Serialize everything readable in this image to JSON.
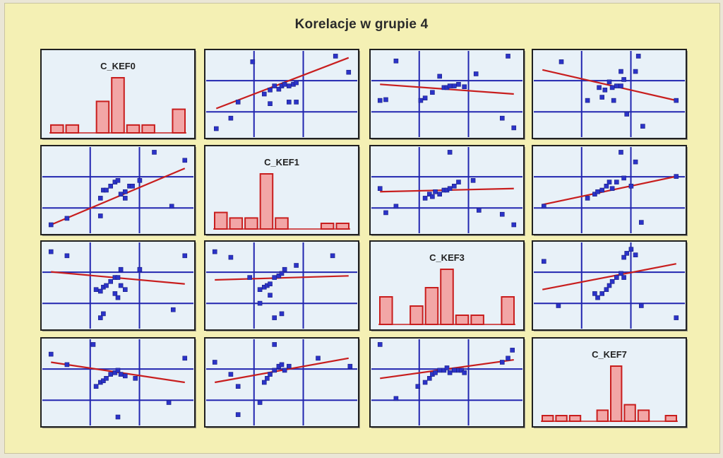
{
  "chart_data": {
    "type": "scatter",
    "title": "Korelacje w grupie 4",
    "variables": [
      "C_KEF0",
      "C_KEF1",
      "C_KEF3",
      "C_KEF7"
    ],
    "colors": {
      "points": "#2b33c8",
      "line": "#c81e1e",
      "bars_fill": "#f2a6a6",
      "bars_stroke": "#c81e1e",
      "grid": "#2226b0",
      "panel_bg": "#e8f1f8"
    },
    "histograms": [
      {
        "var": "C_KEF0",
        "counts": [
          1,
          1,
          0,
          4,
          7,
          1,
          1,
          0,
          3
        ]
      },
      {
        "var": "C_KEF1",
        "counts": [
          3,
          2,
          2,
          10,
          2,
          0,
          0,
          1,
          1
        ]
      },
      {
        "var": "C_KEF3",
        "counts": [
          3,
          0,
          2,
          4,
          6,
          1,
          1,
          0,
          3
        ]
      },
      {
        "var": "C_KEF7",
        "counts": [
          1,
          1,
          1,
          0,
          2,
          10,
          3,
          2,
          0,
          1
        ]
      }
    ],
    "scatter": [
      {
        "row": 0,
        "col": 1,
        "points": [
          [
            0.05,
            0.07
          ],
          [
            0.15,
            0.2
          ],
          [
            0.2,
            0.4
          ],
          [
            0.3,
            0.9
          ],
          [
            0.38,
            0.5
          ],
          [
            0.42,
            0.55
          ],
          [
            0.45,
            0.6
          ],
          [
            0.48,
            0.56
          ],
          [
            0.5,
            0.6
          ],
          [
            0.52,
            0.62
          ],
          [
            0.55,
            0.6
          ],
          [
            0.58,
            0.62
          ],
          [
            0.6,
            0.64
          ],
          [
            0.42,
            0.38
          ],
          [
            0.55,
            0.4
          ],
          [
            0.6,
            0.4
          ],
          [
            0.87,
            0.97
          ],
          [
            0.96,
            0.77
          ]
        ],
        "line": [
          [
            0.05,
            0.32
          ],
          [
            0.96,
            0.95
          ]
        ]
      },
      {
        "row": 0,
        "col": 2,
        "points": [
          [
            0.04,
            0.42
          ],
          [
            0.08,
            0.43
          ],
          [
            0.15,
            0.91
          ],
          [
            0.32,
            0.42
          ],
          [
            0.35,
            0.45
          ],
          [
            0.4,
            0.52
          ],
          [
            0.45,
            0.72
          ],
          [
            0.48,
            0.58
          ],
          [
            0.5,
            0.58
          ],
          [
            0.52,
            0.6
          ],
          [
            0.55,
            0.6
          ],
          [
            0.58,
            0.62
          ],
          [
            0.62,
            0.59
          ],
          [
            0.7,
            0.75
          ],
          [
            0.88,
            0.2
          ],
          [
            0.92,
            0.97
          ],
          [
            0.96,
            0.08
          ]
        ],
        "line": [
          [
            0.04,
            0.62
          ],
          [
            0.96,
            0.5
          ]
        ]
      },
      {
        "row": 0,
        "col": 3,
        "points": [
          [
            0.17,
            0.9
          ],
          [
            0.35,
            0.42
          ],
          [
            0.43,
            0.58
          ],
          [
            0.45,
            0.46
          ],
          [
            0.47,
            0.55
          ],
          [
            0.5,
            0.65
          ],
          [
            0.52,
            0.58
          ],
          [
            0.53,
            0.42
          ],
          [
            0.55,
            0.6
          ],
          [
            0.58,
            0.6
          ],
          [
            0.6,
            0.68
          ],
          [
            0.58,
            0.78
          ],
          [
            0.62,
            0.25
          ],
          [
            0.68,
            0.78
          ],
          [
            0.7,
            0.97
          ],
          [
            0.73,
            0.1
          ],
          [
            0.96,
            0.42
          ]
        ],
        "line": [
          [
            0.04,
            0.8
          ],
          [
            0.96,
            0.42
          ]
        ]
      },
      {
        "row": 1,
        "col": 0,
        "points": [
          [
            0.04,
            0.07
          ],
          [
            0.15,
            0.15
          ],
          [
            0.38,
            0.4
          ],
          [
            0.4,
            0.5
          ],
          [
            0.42,
            0.5
          ],
          [
            0.45,
            0.55
          ],
          [
            0.48,
            0.6
          ],
          [
            0.5,
            0.62
          ],
          [
            0.52,
            0.45
          ],
          [
            0.55,
            0.48
          ],
          [
            0.58,
            0.55
          ],
          [
            0.6,
            0.55
          ],
          [
            0.38,
            0.18
          ],
          [
            0.55,
            0.4
          ],
          [
            0.65,
            0.62
          ],
          [
            0.75,
            0.97
          ],
          [
            0.87,
            0.3
          ],
          [
            0.96,
            0.87
          ]
        ],
        "line": [
          [
            0.04,
            0.07
          ],
          [
            0.96,
            0.77
          ]
        ]
      },
      {
        "row": 1,
        "col": 2,
        "points": [
          [
            0.04,
            0.52
          ],
          [
            0.08,
            0.22
          ],
          [
            0.15,
            0.3
          ],
          [
            0.35,
            0.4
          ],
          [
            0.38,
            0.45
          ],
          [
            0.4,
            0.42
          ],
          [
            0.42,
            0.48
          ],
          [
            0.45,
            0.45
          ],
          [
            0.48,
            0.5
          ],
          [
            0.5,
            0.5
          ],
          [
            0.52,
            0.52
          ],
          [
            0.55,
            0.55
          ],
          [
            0.58,
            0.6
          ],
          [
            0.52,
            0.97
          ],
          [
            0.68,
            0.62
          ],
          [
            0.72,
            0.25
          ],
          [
            0.88,
            0.2
          ],
          [
            0.96,
            0.07
          ]
        ],
        "line": [
          [
            0.04,
            0.48
          ],
          [
            0.96,
            0.52
          ]
        ]
      },
      {
        "row": 1,
        "col": 3,
        "points": [
          [
            0.05,
            0.3
          ],
          [
            0.35,
            0.4
          ],
          [
            0.4,
            0.45
          ],
          [
            0.42,
            0.48
          ],
          [
            0.45,
            0.5
          ],
          [
            0.48,
            0.55
          ],
          [
            0.5,
            0.6
          ],
          [
            0.52,
            0.52
          ],
          [
            0.55,
            0.6
          ],
          [
            0.6,
            0.65
          ],
          [
            0.65,
            0.55
          ],
          [
            0.58,
            0.97
          ],
          [
            0.68,
            0.85
          ],
          [
            0.72,
            0.1
          ],
          [
            0.96,
            0.67
          ]
        ],
        "line": [
          [
            0.04,
            0.32
          ],
          [
            0.96,
            0.67
          ]
        ]
      },
      {
        "row": 2,
        "col": 0,
        "points": [
          [
            0.04,
            0.92
          ],
          [
            0.15,
            0.87
          ],
          [
            0.35,
            0.45
          ],
          [
            0.38,
            0.43
          ],
          [
            0.4,
            0.48
          ],
          [
            0.42,
            0.5
          ],
          [
            0.45,
            0.55
          ],
          [
            0.48,
            0.6
          ],
          [
            0.5,
            0.6
          ],
          [
            0.52,
            0.5
          ],
          [
            0.55,
            0.45
          ],
          [
            0.48,
            0.4
          ],
          [
            0.5,
            0.35
          ],
          [
            0.52,
            0.7
          ],
          [
            0.38,
            0.1
          ],
          [
            0.4,
            0.15
          ],
          [
            0.65,
            0.7
          ],
          [
            0.88,
            0.2
          ],
          [
            0.96,
            0.87
          ]
        ],
        "line": [
          [
            0.04,
            0.67
          ],
          [
            0.96,
            0.52
          ]
        ]
      },
      {
        "row": 2,
        "col": 1,
        "points": [
          [
            0.04,
            0.92
          ],
          [
            0.15,
            0.85
          ],
          [
            0.28,
            0.6
          ],
          [
            0.35,
            0.45
          ],
          [
            0.38,
            0.48
          ],
          [
            0.4,
            0.5
          ],
          [
            0.42,
            0.52
          ],
          [
            0.45,
            0.6
          ],
          [
            0.48,
            0.62
          ],
          [
            0.5,
            0.65
          ],
          [
            0.52,
            0.7
          ],
          [
            0.35,
            0.28
          ],
          [
            0.42,
            0.38
          ],
          [
            0.45,
            0.1
          ],
          [
            0.5,
            0.15
          ],
          [
            0.6,
            0.75
          ],
          [
            0.85,
            0.87
          ]
        ],
        "line": [
          [
            0.04,
            0.57
          ],
          [
            0.96,
            0.62
          ]
        ]
      },
      {
        "row": 2,
        "col": 3,
        "points": [
          [
            0.05,
            0.8
          ],
          [
            0.15,
            0.25
          ],
          [
            0.4,
            0.4
          ],
          [
            0.42,
            0.35
          ],
          [
            0.45,
            0.4
          ],
          [
            0.48,
            0.45
          ],
          [
            0.5,
            0.5
          ],
          [
            0.52,
            0.55
          ],
          [
            0.55,
            0.6
          ],
          [
            0.58,
            0.65
          ],
          [
            0.6,
            0.6
          ],
          [
            0.6,
            0.85
          ],
          [
            0.62,
            0.9
          ],
          [
            0.65,
            0.95
          ],
          [
            0.68,
            0.88
          ],
          [
            0.72,
            0.25
          ],
          [
            0.96,
            0.1
          ]
        ],
        "line": [
          [
            0.04,
            0.45
          ],
          [
            0.96,
            0.77
          ]
        ]
      },
      {
        "row": 3,
        "col": 0,
        "points": [
          [
            0.04,
            0.85
          ],
          [
            0.15,
            0.72
          ],
          [
            0.35,
            0.45
          ],
          [
            0.38,
            0.5
          ],
          [
            0.4,
            0.52
          ],
          [
            0.42,
            0.55
          ],
          [
            0.45,
            0.6
          ],
          [
            0.48,
            0.62
          ],
          [
            0.5,
            0.65
          ],
          [
            0.52,
            0.6
          ],
          [
            0.55,
            0.58
          ],
          [
            0.33,
            0.97
          ],
          [
            0.5,
            0.07
          ],
          [
            0.62,
            0.55
          ],
          [
            0.85,
            0.25
          ],
          [
            0.96,
            0.8
          ]
        ],
        "line": [
          [
            0.04,
            0.75
          ],
          [
            0.96,
            0.5
          ]
        ]
      },
      {
        "row": 3,
        "col": 1,
        "points": [
          [
            0.04,
            0.75
          ],
          [
            0.15,
            0.6
          ],
          [
            0.2,
            0.45
          ],
          [
            0.35,
            0.25
          ],
          [
            0.38,
            0.5
          ],
          [
            0.4,
            0.55
          ],
          [
            0.42,
            0.6
          ],
          [
            0.45,
            0.65
          ],
          [
            0.48,
            0.7
          ],
          [
            0.5,
            0.72
          ],
          [
            0.52,
            0.65
          ],
          [
            0.55,
            0.7
          ],
          [
            0.45,
            0.97
          ],
          [
            0.2,
            0.1
          ],
          [
            0.75,
            0.8
          ],
          [
            0.97,
            0.7
          ]
        ],
        "line": [
          [
            0.04,
            0.5
          ],
          [
            0.96,
            0.8
          ]
        ]
      },
      {
        "row": 3,
        "col": 2,
        "points": [
          [
            0.04,
            0.97
          ],
          [
            0.15,
            0.3
          ],
          [
            0.3,
            0.45
          ],
          [
            0.35,
            0.5
          ],
          [
            0.38,
            0.55
          ],
          [
            0.4,
            0.6
          ],
          [
            0.42,
            0.62
          ],
          [
            0.45,
            0.65
          ],
          [
            0.48,
            0.65
          ],
          [
            0.5,
            0.68
          ],
          [
            0.52,
            0.62
          ],
          [
            0.55,
            0.65
          ],
          [
            0.58,
            0.65
          ],
          [
            0.6,
            0.65
          ],
          [
            0.62,
            0.62
          ],
          [
            0.88,
            0.75
          ],
          [
            0.92,
            0.8
          ],
          [
            0.95,
            0.9
          ]
        ],
        "line": [
          [
            0.04,
            0.55
          ],
          [
            0.96,
            0.78
          ]
        ]
      }
    ]
  }
}
